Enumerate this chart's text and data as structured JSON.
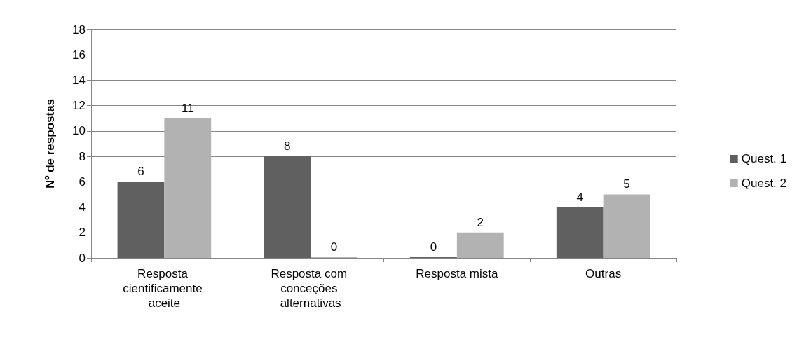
{
  "chart_data": {
    "type": "bar",
    "ylabel": "Nº de respostas",
    "categories": [
      "Resposta cientificamente aceite",
      "Resposta com conceções alternativas",
      "Resposta mista",
      "Outras"
    ],
    "series": [
      {
        "name": "Quest. 1",
        "color": "#606060",
        "values": [
          6,
          8,
          0,
          4
        ]
      },
      {
        "name": "Quest. 2",
        "color": "#b2b2b2",
        "values": [
          11,
          0,
          2,
          5
        ]
      }
    ],
    "ylim": [
      0,
      18
    ],
    "yticks": [
      0,
      2,
      4,
      6,
      8,
      10,
      12,
      14,
      16,
      18
    ],
    "grid": "y",
    "legend": "right",
    "data_labels": true
  }
}
